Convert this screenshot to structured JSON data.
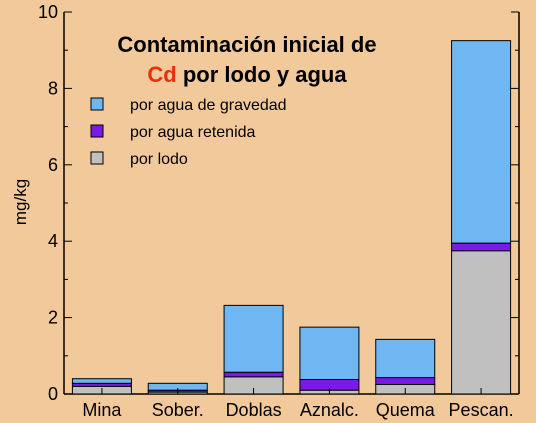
{
  "chart_data": {
    "type": "bar",
    "stacked": true,
    "title_line1": "Contaminación inicial de",
    "title_line2_highlight": "Cd",
    "title_line2_rest": " por lodo y agua",
    "ylabel": "mg/kg",
    "xlabel": "",
    "ylim": [
      0,
      10
    ],
    "yticks": [
      0,
      2,
      4,
      6,
      8,
      10
    ],
    "categories": [
      "Mina",
      "Sober.",
      "Doblas",
      "Aznalc.",
      "Quema",
      "Pescan."
    ],
    "series": [
      {
        "name": "por lodo",
        "color": "#c0c0c0",
        "values": [
          0.2,
          0.05,
          0.45,
          0.1,
          0.25,
          3.75
        ]
      },
      {
        "name": "por agua retenida",
        "color": "#7a1ae6",
        "values": [
          0.08,
          0.05,
          0.12,
          0.28,
          0.18,
          0.2
        ]
      },
      {
        "name": "por agua de gravedad",
        "color": "#6fb7f2",
        "values": [
          0.12,
          0.18,
          1.75,
          1.37,
          1.0,
          5.3
        ]
      }
    ],
    "legend": {
      "placement": "top-left",
      "order": [
        "por agua de gravedad",
        "por agua retenida",
        "por lodo"
      ]
    },
    "grid": false,
    "colors": {
      "background": "#f2c99a",
      "highlight": "#e8300a"
    }
  }
}
